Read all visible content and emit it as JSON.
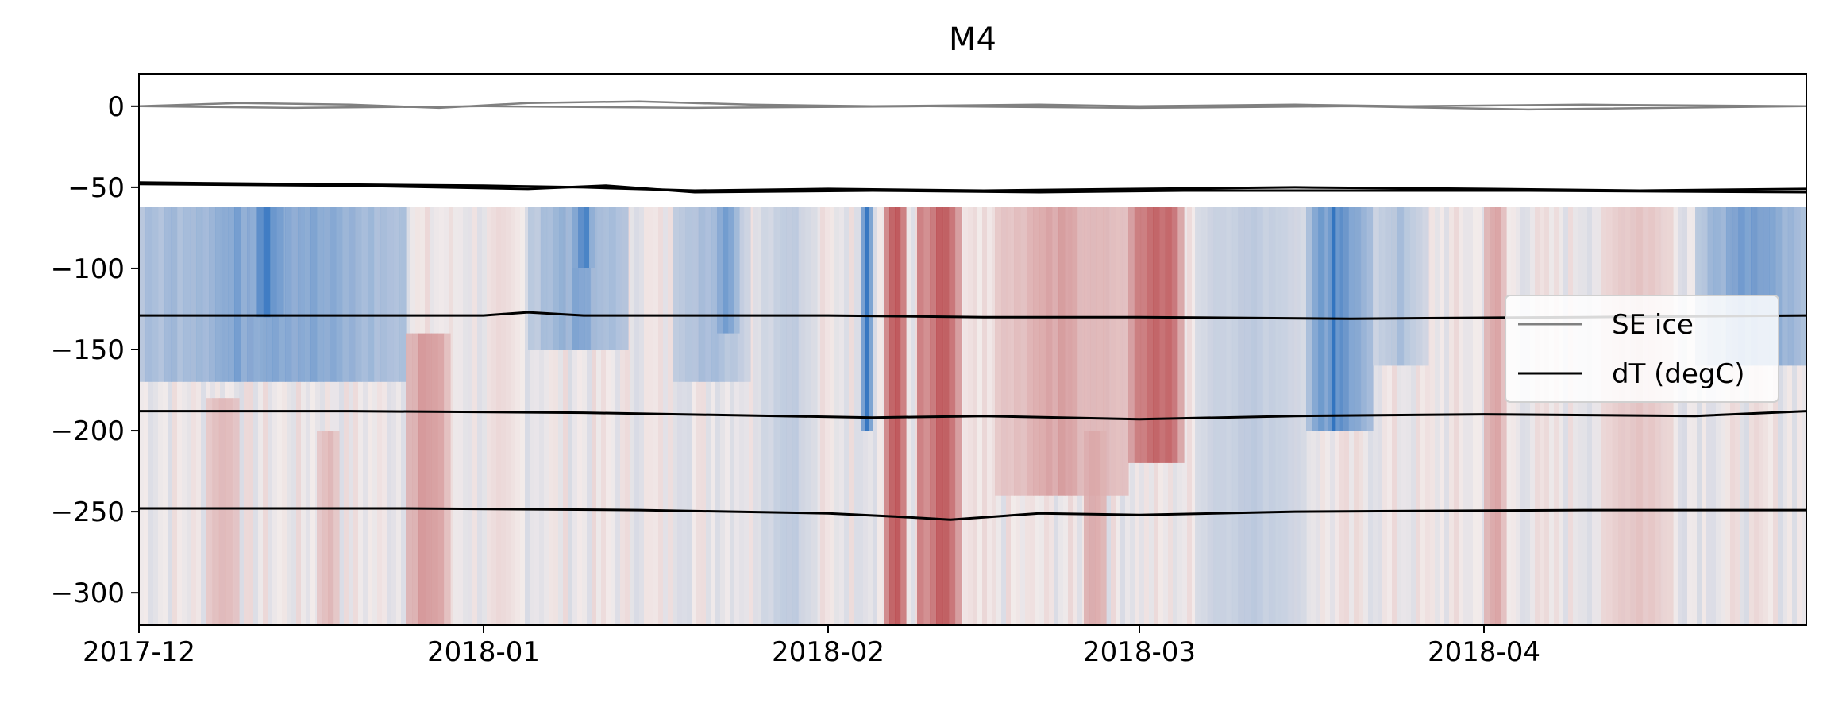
{
  "chart_data": {
    "type": "heatmap",
    "title": "M4",
    "xlabel": "",
    "ylabel": "",
    "x_range": [
      "2017-12-01",
      "2018-04-30"
    ],
    "ylim": [
      -320,
      20
    ],
    "x_ticks": [
      {
        "date": "2017-12-01",
        "label": "2017-12"
      },
      {
        "date": "2018-01-01",
        "label": "2018-01"
      },
      {
        "date": "2018-02-01",
        "label": "2018-02"
      },
      {
        "date": "2018-03-01",
        "label": "2018-03"
      },
      {
        "date": "2018-04-01",
        "label": "2018-04"
      }
    ],
    "y_ticks": [
      0,
      -50,
      -100,
      -150,
      -200,
      -250,
      -300
    ],
    "y_tick_labels": [
      "0",
      "−50",
      "−100",
      "−150",
      "−200",
      "−250",
      "−300"
    ],
    "heatmap": {
      "depth_top": -62,
      "depth_bottom": -320,
      "colormap": "RdBu_r",
      "colors": {
        "warm": "#a50f15",
        "neutral": "#f2ebea",
        "cool": "#0b5cb8"
      },
      "anomaly_events": [
        {
          "start": "2017-12-01",
          "end": "2017-12-25",
          "top": -62,
          "bottom": -170,
          "value": -0.6
        },
        {
          "start": "2017-12-11",
          "end": "2017-12-14",
          "top": -62,
          "bottom": -130,
          "value": -0.85
        },
        {
          "start": "2017-12-25",
          "end": "2017-12-29",
          "top": -140,
          "bottom": -320,
          "value": 0.45
        },
        {
          "start": "2017-12-07",
          "end": "2017-12-10",
          "top": -180,
          "bottom": -320,
          "value": 0.3
        },
        {
          "start": "2017-12-17",
          "end": "2017-12-19",
          "top": -200,
          "bottom": -320,
          "value": 0.3
        },
        {
          "start": "2018-01-05",
          "end": "2018-01-14",
          "top": -62,
          "bottom": -150,
          "value": -0.5
        },
        {
          "start": "2018-01-09",
          "end": "2018-01-11",
          "top": -62,
          "bottom": -100,
          "value": -0.8
        },
        {
          "start": "2018-01-18",
          "end": "2018-01-25",
          "top": -62,
          "bottom": -170,
          "value": -0.4
        },
        {
          "start": "2018-01-22",
          "end": "2018-01-24",
          "top": -62,
          "bottom": -140,
          "value": -0.65
        },
        {
          "start": "2018-01-26",
          "end": "2018-01-31",
          "top": -62,
          "bottom": -320,
          "value": -0.25
        },
        {
          "start": "2018-02-04",
          "end": "2018-02-05",
          "top": -62,
          "bottom": -200,
          "value": -0.8
        },
        {
          "start": "2018-02-06",
          "end": "2018-02-08",
          "top": -62,
          "bottom": -320,
          "value": 0.95
        },
        {
          "start": "2018-02-09",
          "end": "2018-02-13",
          "top": -62,
          "bottom": -320,
          "value": 0.8
        },
        {
          "start": "2018-02-16",
          "end": "2018-02-28",
          "top": -62,
          "bottom": -240,
          "value": 0.35
        },
        {
          "start": "2018-02-24",
          "end": "2018-02-26",
          "top": -200,
          "bottom": -320,
          "value": 0.4
        },
        {
          "start": "2018-02-28",
          "end": "2018-03-05",
          "top": -62,
          "bottom": -220,
          "value": 0.75
        },
        {
          "start": "2018-03-06",
          "end": "2018-03-16",
          "top": -62,
          "bottom": -320,
          "value": -0.25
        },
        {
          "start": "2018-03-16",
          "end": "2018-03-22",
          "top": -62,
          "bottom": -200,
          "value": -0.75
        },
        {
          "start": "2018-03-18",
          "end": "2018-03-19",
          "top": -62,
          "bottom": -200,
          "value": -1.0
        },
        {
          "start": "2018-03-22",
          "end": "2018-03-27",
          "top": -62,
          "bottom": -160,
          "value": -0.35
        },
        {
          "start": "2018-04-01",
          "end": "2018-04-03",
          "top": -62,
          "bottom": -320,
          "value": 0.4
        },
        {
          "start": "2018-04-12",
          "end": "2018-04-18",
          "top": -62,
          "bottom": -320,
          "value": 0.2
        },
        {
          "start": "2018-04-20",
          "end": "2018-04-30",
          "top": -62,
          "bottom": -160,
          "value": -0.6
        }
      ]
    },
    "series": [
      {
        "name": "SE ice",
        "color": "#808080",
        "points": [
          [
            "2017-12-01",
            0
          ],
          [
            "2017-12-10",
            2
          ],
          [
            "2017-12-20",
            1
          ],
          [
            "2017-12-28",
            -1
          ],
          [
            "2018-01-05",
            2
          ],
          [
            "2018-01-15",
            3
          ],
          [
            "2018-01-25",
            1
          ],
          [
            "2018-02-05",
            0
          ],
          [
            "2018-02-20",
            1
          ],
          [
            "2018-03-01",
            0
          ],
          [
            "2018-03-15",
            1
          ],
          [
            "2018-03-25",
            0
          ],
          [
            "2018-04-10",
            1
          ],
          [
            "2018-04-30",
            0
          ]
        ]
      },
      {
        "name": "SE ice",
        "color": "#808080",
        "points": [
          [
            "2017-12-01",
            0
          ],
          [
            "2017-12-15",
            -1
          ],
          [
            "2018-01-01",
            0
          ],
          [
            "2018-01-20",
            -1
          ],
          [
            "2018-02-10",
            0
          ],
          [
            "2018-03-01",
            -1
          ],
          [
            "2018-03-20",
            0
          ],
          [
            "2018-04-05",
            -2
          ],
          [
            "2018-04-30",
            0
          ]
        ]
      },
      {
        "name": "dT (degC)",
        "color": "#000000",
        "points": [
          [
            "2017-12-01",
            -47
          ],
          [
            "2017-12-15",
            -48
          ],
          [
            "2018-01-01",
            -49
          ],
          [
            "2018-01-10",
            -50
          ],
          [
            "2018-01-20",
            -52
          ],
          [
            "2018-02-01",
            -51
          ],
          [
            "2018-02-15",
            -52
          ],
          [
            "2018-03-01",
            -51
          ],
          [
            "2018-03-15",
            -50
          ],
          [
            "2018-04-01",
            -51
          ],
          [
            "2018-04-15",
            -52
          ],
          [
            "2018-04-30",
            -51
          ]
        ]
      },
      {
        "name": "dT (degC)",
        "color": "#000000",
        "points": [
          [
            "2017-12-01",
            -48
          ],
          [
            "2017-12-20",
            -49
          ],
          [
            "2018-01-05",
            -51
          ],
          [
            "2018-01-12",
            -49
          ],
          [
            "2018-01-20",
            -53
          ],
          [
            "2018-02-05",
            -52
          ],
          [
            "2018-02-20",
            -53
          ],
          [
            "2018-03-05",
            -52
          ],
          [
            "2018-03-20",
            -52
          ],
          [
            "2018-04-05",
            -52
          ],
          [
            "2018-04-30",
            -53
          ]
        ]
      },
      {
        "name": "dT (degC)",
        "color": "#000000",
        "points": [
          [
            "2017-12-01",
            -129
          ],
          [
            "2017-12-15",
            -129
          ],
          [
            "2018-01-01",
            -129
          ],
          [
            "2018-01-05",
            -127
          ],
          [
            "2018-01-10",
            -129
          ],
          [
            "2018-02-01",
            -129
          ],
          [
            "2018-02-15",
            -130
          ],
          [
            "2018-03-01",
            -130
          ],
          [
            "2018-03-20",
            -131
          ],
          [
            "2018-04-10",
            -130
          ],
          [
            "2018-04-30",
            -129
          ]
        ]
      },
      {
        "name": "dT (degC)",
        "color": "#000000",
        "points": [
          [
            "2017-12-01",
            -188
          ],
          [
            "2017-12-20",
            -188
          ],
          [
            "2018-01-10",
            -189
          ],
          [
            "2018-02-05",
            -192
          ],
          [
            "2018-02-15",
            -191
          ],
          [
            "2018-03-01",
            -193
          ],
          [
            "2018-03-15",
            -191
          ],
          [
            "2018-04-01",
            -190
          ],
          [
            "2018-04-20",
            -191
          ],
          [
            "2018-04-30",
            -188
          ]
        ]
      },
      {
        "name": "dT (degC)",
        "color": "#000000",
        "points": [
          [
            "2017-12-01",
            -248
          ],
          [
            "2017-12-25",
            -248
          ],
          [
            "2018-01-15",
            -249
          ],
          [
            "2018-02-01",
            -251
          ],
          [
            "2018-02-07",
            -253
          ],
          [
            "2018-02-12",
            -255
          ],
          [
            "2018-02-20",
            -251
          ],
          [
            "2018-03-01",
            -252
          ],
          [
            "2018-03-15",
            -250
          ],
          [
            "2018-04-10",
            -249
          ],
          [
            "2018-04-30",
            -249
          ]
        ]
      }
    ],
    "legend": {
      "placement": "center-right",
      "entries": [
        {
          "label": "SE ice",
          "color": "#808080"
        },
        {
          "label": "dT (degC)",
          "color": "#000000"
        }
      ]
    },
    "grid": false
  }
}
